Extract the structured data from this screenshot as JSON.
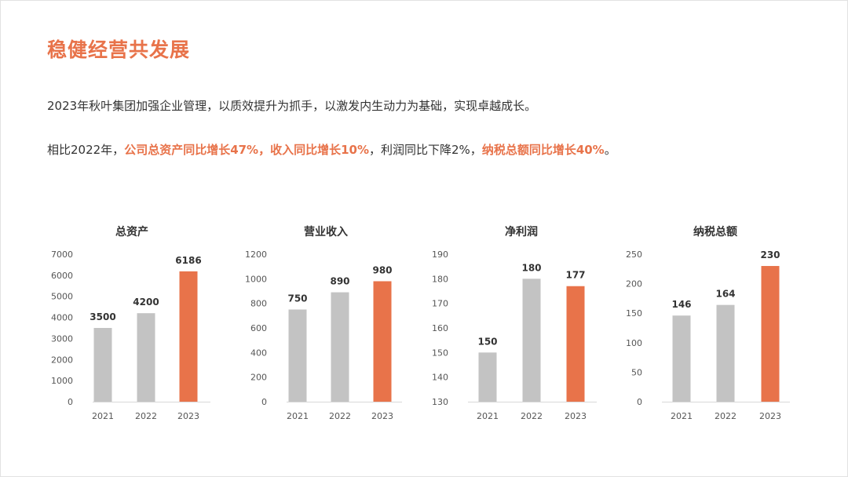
{
  "slide": {
    "title": "稳健经营共发展",
    "intro": "2023年秋叶集团加强企业管理，以质效提升为抓手，以激发内生动力为基础，实现卓越成长。",
    "summary": {
      "prefix": "相比2022年，",
      "hl1": "公司总资产同比增长47%，收入同比增长10%",
      "mid": "，利润同比下降2%，",
      "hl2": "纳税总额同比增长40%",
      "suffix": "。"
    }
  },
  "colors": {
    "accent": "#e8734a",
    "bar_gray": "#c3c3c3",
    "text": "#333333"
  },
  "chart_data": [
    {
      "type": "bar",
      "title": "总资产",
      "categories": [
        "2021",
        "2022",
        "2023"
      ],
      "values": [
        3500,
        4200,
        6186
      ],
      "ylim": [
        0,
        7000
      ],
      "yticks": [
        0,
        1000,
        2000,
        3000,
        4000,
        5000,
        6000,
        7000
      ],
      "highlight_index": 2,
      "grid": false
    },
    {
      "type": "bar",
      "title": "营业收入",
      "categories": [
        "2021",
        "2022",
        "2023"
      ],
      "values": [
        750,
        890,
        980
      ],
      "ylim": [
        0,
        1200
      ],
      "yticks": [
        0,
        200,
        400,
        600,
        800,
        1000,
        1200
      ],
      "highlight_index": 2,
      "grid": false
    },
    {
      "type": "bar",
      "title": "净利润",
      "categories": [
        "2021",
        "2022",
        "2023"
      ],
      "values": [
        150,
        180,
        177
      ],
      "ylim": [
        130,
        190
      ],
      "yticks": [
        130,
        140,
        150,
        160,
        170,
        180,
        190
      ],
      "highlight_index": 2,
      "grid": false
    },
    {
      "type": "bar",
      "title": "纳税总额",
      "categories": [
        "2021",
        "2022",
        "2023"
      ],
      "values": [
        146,
        164,
        230
      ],
      "ylim": [
        0,
        250
      ],
      "yticks": [
        0,
        50,
        100,
        150,
        200,
        250
      ],
      "highlight_index": 2,
      "grid": false
    }
  ]
}
